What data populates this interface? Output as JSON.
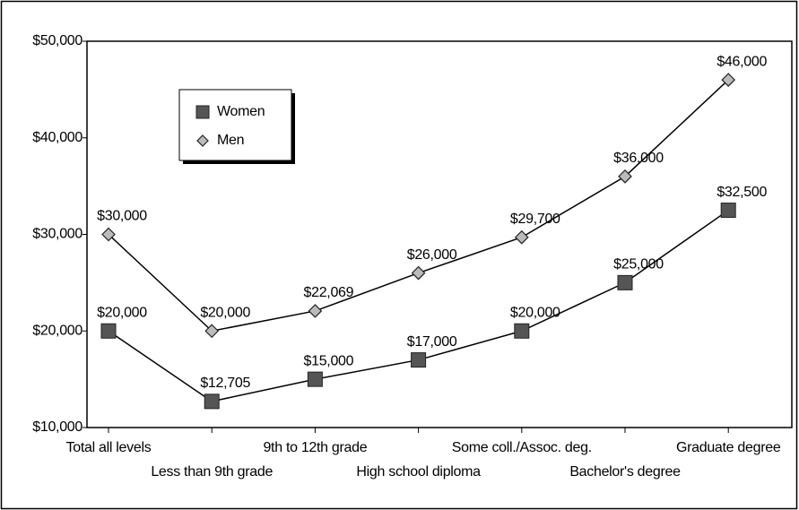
{
  "chart_data": {
    "type": "line",
    "categories": [
      "Total all levels",
      "Less than 9th grade",
      "9th to 12th grade",
      "High school diploma",
      "Some coll./Assoc. deg.",
      "Bachelor's degree",
      "Graduate degree"
    ],
    "series": [
      {
        "name": "Women",
        "color": "#555555",
        "marker": "square",
        "values": [
          20000,
          12705,
          15000,
          17000,
          20000,
          25000,
          32500
        ],
        "value_labels": [
          "$20,000",
          "$12,705",
          "$15,000",
          "$17,000",
          "$20,000",
          "$25,000",
          "$32,500"
        ]
      },
      {
        "name": "Men",
        "color": "#bbbbbb",
        "marker": "diamond",
        "values": [
          30000,
          20000,
          22069,
          26000,
          29700,
          36000,
          46000
        ],
        "value_labels": [
          "$30,000",
          "$20,000",
          "$22,069",
          "$26,000",
          "$29,700",
          "$36,000",
          "$46,000"
        ]
      }
    ],
    "ylim": [
      10000,
      50000
    ],
    "yticks": [
      {
        "value": 10000,
        "label": "$10,000"
      },
      {
        "value": 20000,
        "label": "$20,000"
      },
      {
        "value": 30000,
        "label": "$30,000"
      },
      {
        "value": 40000,
        "label": "$40,000"
      },
      {
        "value": 50000,
        "label": "$50,000"
      }
    ],
    "legend": "upper left"
  }
}
